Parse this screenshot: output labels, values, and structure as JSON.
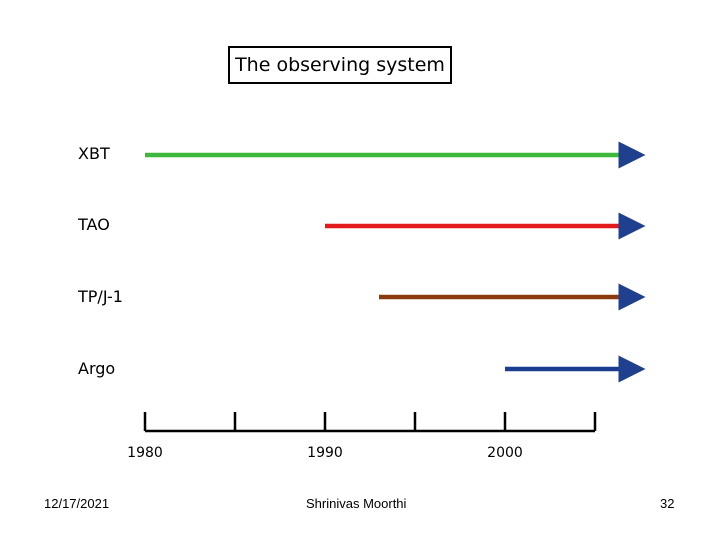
{
  "slide": {
    "title": "The observing system",
    "date": "12/17/2021",
    "author": "Shrinivas Moorthi",
    "page_number": "32"
  },
  "timeline": {
    "axis_labels": [
      "1980",
      "1990",
      "2000"
    ],
    "tick_years": [
      1980,
      1985,
      1990,
      1995,
      2000,
      2005
    ],
    "end_year": 2008,
    "systems": [
      {
        "name": "XBT",
        "start_year": 1980,
        "color": "#3cb93c"
      },
      {
        "name": "TAO",
        "start_year": 1990,
        "color": "#e31b1b"
      },
      {
        "name": "TP/J-1",
        "start_year": 1993,
        "color": "#8b3a0e"
      },
      {
        "name": "Argo",
        "start_year": 2000,
        "color": "#1a3d8f"
      }
    ]
  }
}
